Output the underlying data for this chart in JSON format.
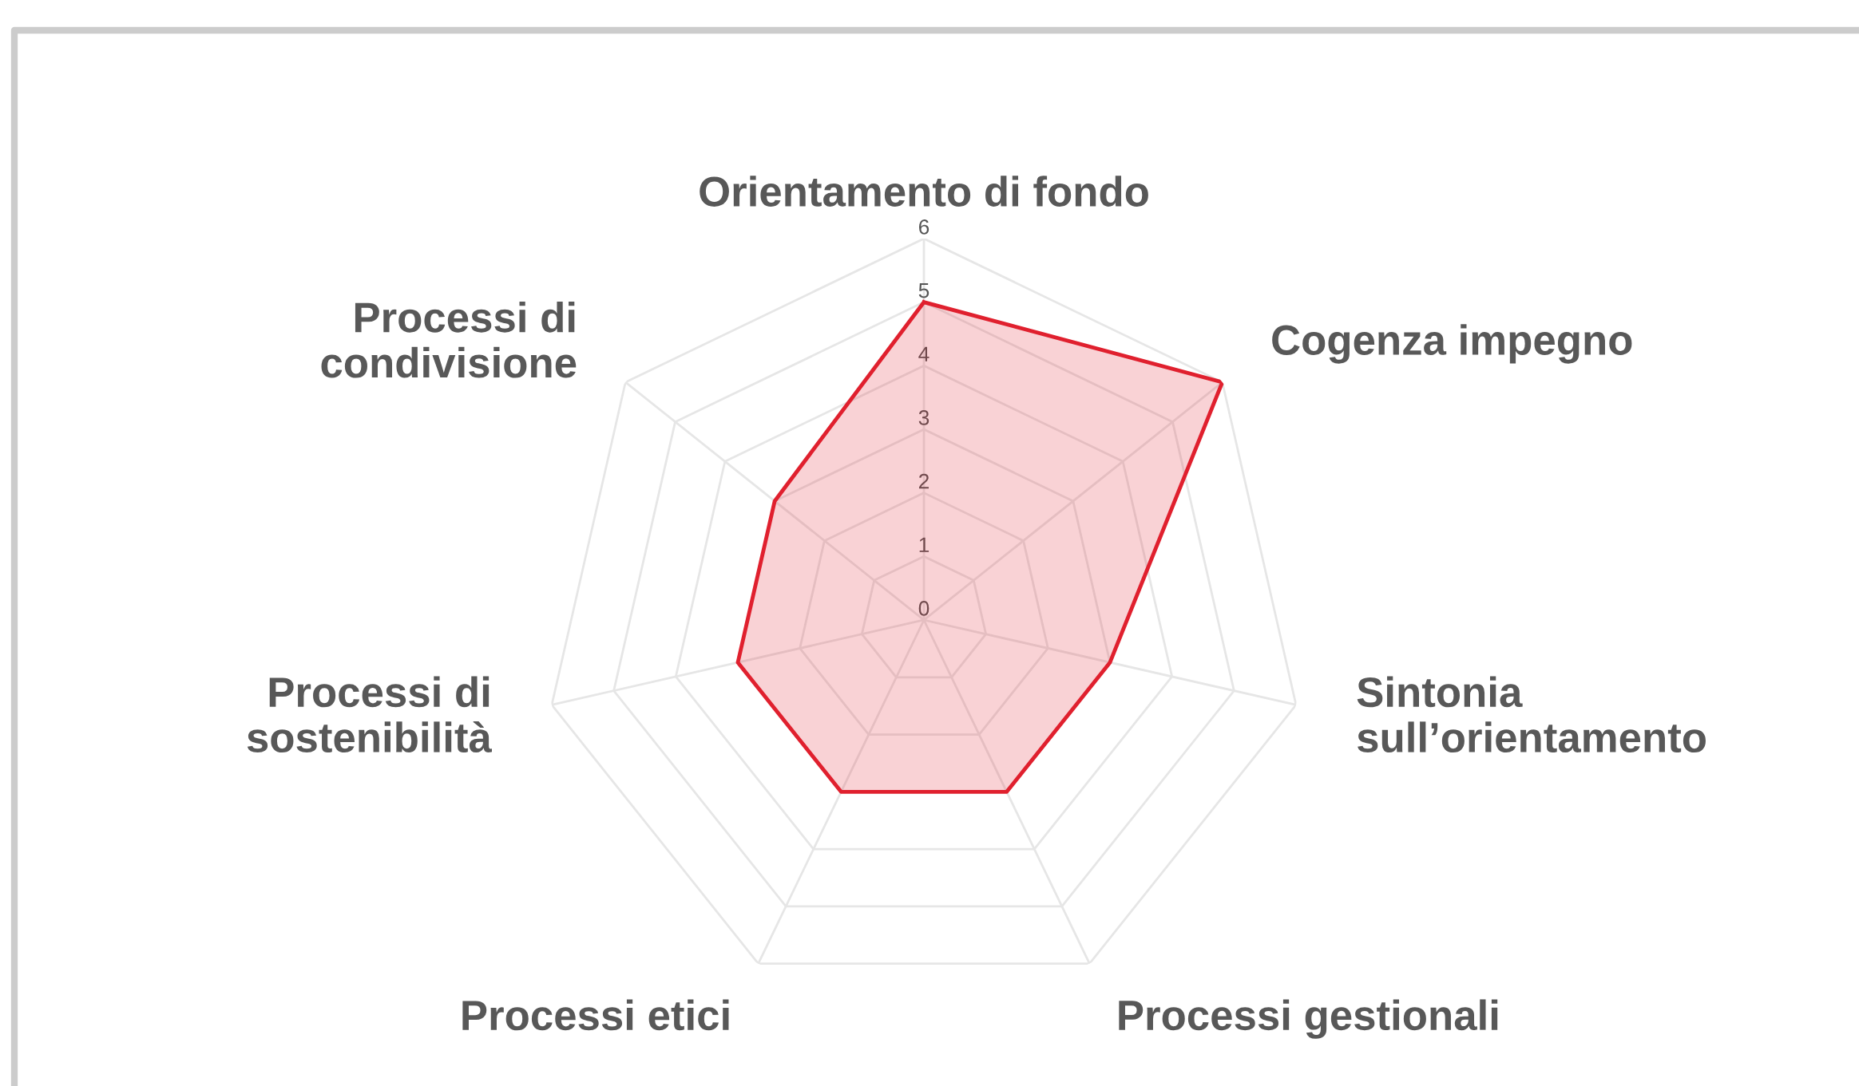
{
  "chart_data": {
    "type": "radar",
    "categories": [
      "Orientamento di fondo",
      "Cogenza impegno",
      "Sintonia\nsull’orientamento",
      "Processi gestionali",
      "Processi etici",
      "Processi di\nsostenibilità",
      "Processi di\ncondivisione"
    ],
    "series": [
      {
        "color": "#e0202e",
        "values": [
          5,
          6,
          3,
          3,
          3,
          3,
          3
        ]
      }
    ],
    "ylim": [
      0,
      6
    ],
    "yticks": [
      0,
      1,
      2,
      3,
      4,
      5,
      6
    ],
    "grid": true
  }
}
